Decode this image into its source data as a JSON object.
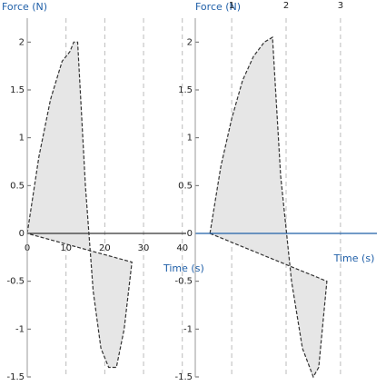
{
  "chart_data": [
    {
      "type": "area",
      "ylabel": "Force (N)",
      "xlabel": "Time (s)",
      "x": [
        0,
        3,
        6,
        9,
        11,
        12,
        13,
        15,
        17,
        19,
        21,
        23,
        25,
        27
      ],
      "values": [
        0,
        0.8,
        1.4,
        1.8,
        1.9,
        2.0,
        2.0,
        0.5,
        -0.6,
        -1.2,
        -1.4,
        -1.4,
        -1.0,
        -0.3
      ],
      "xlim": [
        0,
        41
      ],
      "xticks": [
        0,
        10,
        20,
        30,
        40
      ],
      "ylim": [
        -1.5,
        2.25
      ],
      "yticks": [
        -1.5,
        -1,
        -0.5,
        0,
        0.5,
        1,
        1.5,
        2
      ],
      "color": "#333333",
      "fill": "#e6e6e6",
      "grid": true
    },
    {
      "type": "area",
      "ylabel": "Force (N)",
      "xlabel": "Time (s)",
      "x": [
        0.6,
        0.8,
        1.0,
        1.2,
        1.4,
        1.6,
        1.75,
        1.9,
        2.1,
        2.3,
        2.5,
        2.6,
        2.75
      ],
      "values": [
        0,
        0.7,
        1.2,
        1.6,
        1.85,
        2.0,
        2.05,
        0.6,
        -0.5,
        -1.2,
        -1.5,
        -1.4,
        -0.5
      ],
      "xlim": [
        0.33,
        3.67
      ],
      "xticks": [
        1,
        2,
        3
      ],
      "ylim": [
        -1.5,
        2.25
      ],
      "yticks": [
        -1.5,
        -1,
        -0.5,
        0,
        0.5,
        1,
        1.5,
        2
      ],
      "color": "#333333",
      "fill": "#e6e6e6",
      "grid": true
    }
  ]
}
